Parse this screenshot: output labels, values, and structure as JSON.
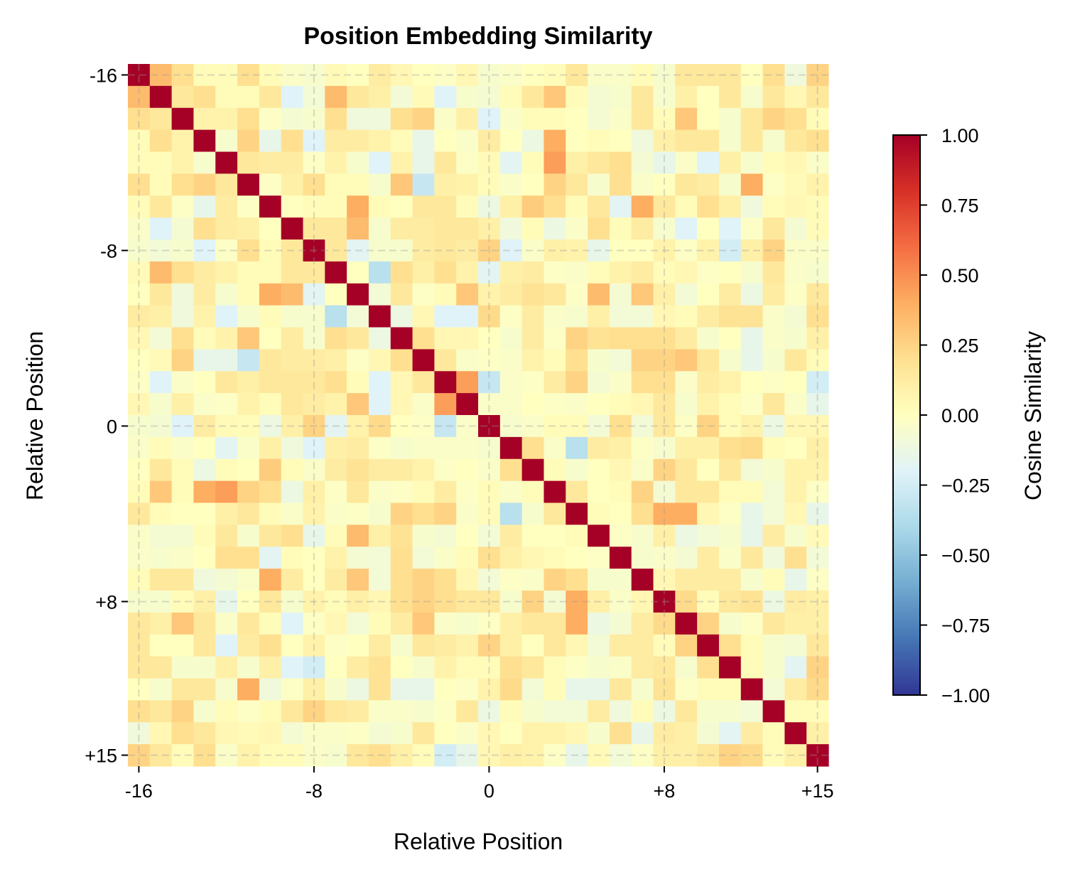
{
  "chart_data": {
    "type": "heatmap",
    "title": "Position Embedding Similarity",
    "xlabel": "Relative Position",
    "ylabel": "Relative Position",
    "positions": [
      -16,
      -15,
      -14,
      -13,
      -12,
      -11,
      -10,
      -9,
      -8,
      -7,
      -6,
      -5,
      -4,
      -3,
      -2,
      -1,
      0,
      1,
      2,
      3,
      4,
      5,
      6,
      7,
      8,
      9,
      10,
      11,
      12,
      13,
      14,
      15
    ],
    "tick_positions": [
      -16,
      -8,
      0,
      8,
      15
    ],
    "tick_labels": [
      "-16",
      "-8",
      "0",
      "+8",
      "+15"
    ],
    "grid": "dashed at tick positions",
    "colormap": "RdYlBu_r",
    "colormap_colors": [
      "#313695",
      "#4575b4",
      "#74add1",
      "#abd9e9",
      "#e0f3f8",
      "#ffffbf",
      "#fee090",
      "#fdae61",
      "#f46d43",
      "#d73027",
      "#a50026"
    ],
    "vmin": -1,
    "vmax": 1,
    "symmetric": true,
    "matrix_upper": [
      [
        1,
        0.35,
        0.2,
        0.02,
        0.02,
        0.2,
        0.02,
        -0.03,
        -0.05,
        0.03,
        0.0,
        0.12,
        0.05,
        0.0,
        -0.02,
        0.05,
        -0.05,
        -0.03,
        0.0,
        0.02,
        0.15,
        -0.03,
        -0.03,
        0.02,
        -0.05,
        0.15,
        0.15,
        0.15,
        0.0,
        0.2,
        -0.1,
        0.25
      ],
      [
        1,
        0.15,
        0.2,
        0.02,
        0.02,
        0.15,
        -0.2,
        -0.08,
        0.35,
        0.15,
        0.1,
        -0.08,
        0.03,
        -0.2,
        -0.05,
        -0.07,
        0.02,
        0.15,
        0.3,
        0.02,
        -0.07,
        -0.05,
        0.15,
        -0.05,
        0.1,
        0.0,
        0.15,
        -0.05,
        0.15,
        0.05,
        0.15
      ],
      [
        1,
        0.08,
        0.08,
        0.2,
        -0.02,
        -0.07,
        -0.05,
        0.2,
        -0.1,
        -0.1,
        0.2,
        0.25,
        -0.03,
        0.1,
        -0.2,
        -0.03,
        0.02,
        0.02,
        0.0,
        -0.07,
        -0.03,
        0.15,
        0.02,
        0.3,
        0.0,
        -0.05,
        0.15,
        0.25,
        0.2,
        0.02
      ],
      [
        1,
        -0.05,
        0.25,
        -0.15,
        0.2,
        -0.2,
        0.12,
        0.12,
        0.08,
        0.02,
        -0.15,
        0.0,
        -0.03,
        0.12,
        0.0,
        -0.12,
        0.4,
        0.0,
        0.02,
        0.0,
        -0.1,
        0.1,
        0.15,
        0.15,
        -0.05,
        0.15,
        -0.05,
        0.15,
        0.2
      ],
      [
        1,
        0.15,
        0.12,
        0.12,
        -0.02,
        0.08,
        -0.05,
        -0.2,
        0.08,
        -0.15,
        0.15,
        -0.02,
        0.03,
        -0.18,
        0.02,
        0.45,
        0.1,
        0.15,
        0.2,
        -0.07,
        -0.15,
        -0.03,
        -0.2,
        0.1,
        -0.05,
        0.02,
        0.05,
        -0.03
      ],
      [
        1,
        -0.02,
        0.1,
        0.2,
        0.02,
        0.02,
        -0.05,
        0.3,
        -0.3,
        0.1,
        0.08,
        0.02,
        -0.03,
        0.0,
        0.25,
        0.15,
        -0.05,
        0.2,
        -0.03,
        0.0,
        0.15,
        0.12,
        -0.05,
        0.4,
        -0.02,
        0.03,
        0.08
      ],
      [
        1,
        0.0,
        0.02,
        0.02,
        0.4,
        0.02,
        0.0,
        0.15,
        0.15,
        0.02,
        -0.12,
        0.1,
        0.28,
        0.2,
        0.02,
        0.15,
        -0.18,
        0.4,
        0.15,
        0.02,
        0.2,
        0.1,
        -0.1,
        0.02,
        0.05,
        0.02
      ],
      [
        1,
        0.15,
        0.15,
        0.35,
        -0.05,
        0.12,
        0.12,
        0.15,
        0.15,
        0.1,
        -0.1,
        0.02,
        -0.12,
        -0.03,
        0.2,
        0.02,
        0.12,
        -0.05,
        -0.2,
        0.0,
        -0.2,
        -0.02,
        0.15,
        -0.07,
        0.02
      ],
      [
        1,
        0.15,
        -0.18,
        -0.05,
        -0.05,
        0.12,
        0.15,
        0.12,
        0.25,
        -0.2,
        -0.03,
        0.1,
        0.08,
        -0.15,
        0.0,
        0.0,
        0.08,
        -0.02,
        0.08,
        -0.25,
        0.1,
        0.25,
        -0.03,
        -0.03
      ],
      [
        1,
        0.0,
        -0.35,
        0.2,
        0.1,
        0.2,
        0.08,
        -0.18,
        0.1,
        0.12,
        -0.02,
        -0.03,
        0.02,
        0.08,
        0.12,
        0.02,
        0.05,
        -0.02,
        0.0,
        -0.05,
        0.15,
        -0.03,
        -0.05
      ],
      [
        1,
        -0.08,
        0.15,
        -0.02,
        0.02,
        0.3,
        0.08,
        0.12,
        0.18,
        0.15,
        -0.02,
        0.35,
        -0.07,
        0.3,
        0.1,
        -0.08,
        0.0,
        0.12,
        -0.12,
        0.12,
        -0.02,
        0.15
      ],
      [
        1,
        -0.12,
        0.05,
        -0.2,
        -0.2,
        0.22,
        -0.02,
        0.12,
        -0.03,
        -0.05,
        0.1,
        -0.08,
        -0.08,
        0.05,
        0.02,
        0.12,
        0.18,
        0.18,
        -0.03,
        -0.07,
        0.2
      ],
      [
        1,
        0.2,
        0.05,
        0.05,
        0.0,
        -0.05,
        0.12,
        -0.02,
        0.25,
        0.18,
        0.2,
        0.2,
        0.2,
        0.12,
        -0.05,
        0.0,
        -0.15,
        -0.03,
        -0.05,
        0.1
      ],
      [
        1,
        0.15,
        -0.03,
        -0.02,
        -0.03,
        0.08,
        0.02,
        0.2,
        -0.05,
        -0.08,
        0.25,
        0.25,
        0.3,
        0.15,
        -0.05,
        -0.15,
        -0.05,
        0.15,
        0.02
      ],
      [
        1,
        0.45,
        -0.3,
        -0.03,
        -0.02,
        0.12,
        0.25,
        -0.07,
        -0.03,
        0.2,
        0.2,
        -0.03,
        0.12,
        0.08,
        0.0,
        -0.02,
        0.0,
        -0.25
      ],
      [
        1,
        -0.03,
        -0.03,
        0.0,
        -0.02,
        -0.03,
        0.0,
        0.02,
        0.05,
        0.15,
        -0.05,
        0.08,
        0.02,
        -0.02,
        0.15,
        -0.03,
        -0.15
      ],
      [
        1,
        -0.05,
        -0.03,
        0.02,
        0.02,
        -0.08,
        0.2,
        -0.08,
        0.15,
        -0.02,
        0.25,
        0.02,
        0.08,
        -0.12,
        0.05,
        0.05
      ],
      [
        1,
        0.2,
        -0.03,
        -0.35,
        0.12,
        0.1,
        -0.02,
        -0.05,
        0.1,
        0.1,
        0.2,
        0.22,
        0.02,
        0.0,
        0.1
      ],
      [
        1,
        0.02,
        -0.05,
        0.0,
        0.05,
        -0.03,
        0.25,
        0.15,
        0.0,
        0.15,
        -0.08,
        -0.05,
        0.08,
        0.08
      ],
      [
        1,
        0.15,
        0.0,
        0.02,
        0.25,
        -0.07,
        0.15,
        0.15,
        0.02,
        0.02,
        -0.08,
        0.08,
        -0.02
      ],
      [
        1,
        0.02,
        0.0,
        0.2,
        0.4,
        0.4,
        0.05,
        -0.02,
        -0.15,
        -0.08,
        0.05,
        -0.15
      ],
      [
        1,
        -0.02,
        -0.05,
        0.1,
        -0.12,
        -0.08,
        -0.05,
        -0.15,
        0.12,
        -0.05,
        0.03
      ],
      [
        1,
        -0.05,
        -0.03,
        -0.07,
        0.12,
        -0.03,
        0.15,
        -0.1,
        0.2,
        -0.08
      ],
      [
        1,
        0.05,
        0.12,
        0.12,
        0.12,
        -0.05,
        0.02,
        -0.15,
        -0.02
      ],
      [
        1,
        0.22,
        0.02,
        0.15,
        0.18,
        -0.12,
        0.12,
        0.1
      ],
      [
        1,
        0.25,
        -0.05,
        -0.02,
        0.15,
        0.1,
        0.1
      ],
      [
        1,
        0.2,
        0.02,
        -0.05,
        -0.07,
        0.15
      ],
      [
        1,
        0.02,
        -0.05,
        -0.18,
        0.25
      ],
      [
        1,
        -0.08,
        0.12,
        0.22
      ],
      [
        1,
        0.02,
        0.02
      ],
      [
        1,
        0.1
      ],
      [
        1
      ]
    ],
    "colorbar": {
      "label": "Cosine Similarity",
      "ticks": [
        1.0,
        0.75,
        0.5,
        0.25,
        0.0,
        -0.25,
        -0.5,
        -0.75,
        -1.0
      ],
      "tick_labels": [
        "1.00",
        "0.75",
        "0.50",
        "0.25",
        "0.00",
        "−0.25",
        "−0.50",
        "−0.75",
        "−1.00"
      ]
    }
  }
}
